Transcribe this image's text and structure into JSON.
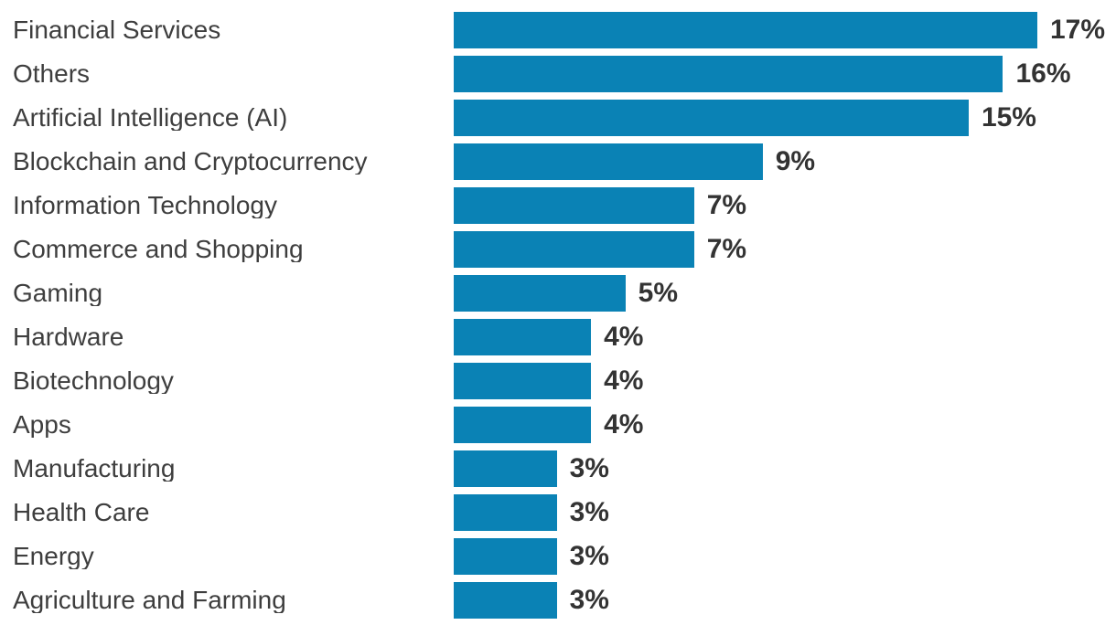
{
  "chart_data": {
    "type": "bar",
    "orientation": "horizontal",
    "title": "",
    "xlabel": "",
    "ylabel": "",
    "xlim": [
      0,
      17
    ],
    "grid": false,
    "legend": false,
    "value_suffix": "%",
    "bar_color": "#0a82b5",
    "label_color": "#3e3e3e",
    "value_color": "#333333",
    "background": "#ffffff",
    "categories": [
      "Financial Services",
      "Others",
      "Artificial Intelligence (AI)",
      "Blockchain and Cryptocurrency",
      "Information Technology",
      "Commerce and Shopping",
      "Gaming",
      "Hardware",
      "Biotechnology",
      "Apps",
      "Manufacturing",
      "Health Care",
      "Energy",
      "Agriculture and Farming"
    ],
    "values": [
      17,
      16,
      15,
      9,
      7,
      7,
      5,
      4,
      4,
      4,
      3,
      3,
      3,
      3
    ]
  }
}
